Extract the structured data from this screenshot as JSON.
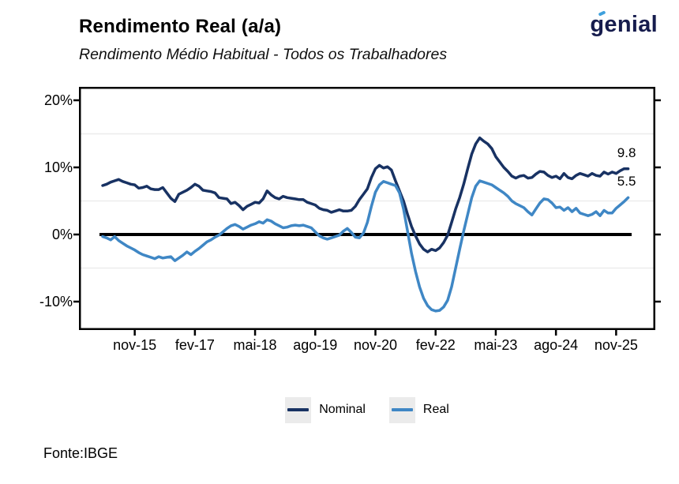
{
  "header": {
    "title": "Rendimento Real (a/a)",
    "subtitle": "Rendimento Médio Habitual - Todos os Trabalhadores",
    "logo_text": "genial"
  },
  "footer": {
    "source": "Fonte:IBGE"
  },
  "colors": {
    "nominal_line": "#183263",
    "real_line": "#3f87c5",
    "gridline": "#ececec",
    "axis": "#000000",
    "legend_key_bg": "#ebebeb",
    "logo_navy": "#161c4d",
    "logo_accent_blue": "#3fa0dc",
    "background": "#ffffff"
  },
  "chart_data": {
    "type": "line",
    "title": "Rendimento Real (a/a)",
    "subtitle": "Rendimento Médio Habitual - Todos os Trabalhadores",
    "source": "Fonte:IBGE",
    "grid": "minor-horizontal-only",
    "legend_position": "bottom-center",
    "y_axis": {
      "tick_labels": [
        "20%",
        "10%",
        "0%",
        "-10%"
      ],
      "tick_values": [
        20,
        10,
        0,
        -10
      ],
      "minor_gridlines": [
        15,
        5,
        -5
      ],
      "ylim": [
        -14,
        22
      ],
      "unit": "%"
    },
    "x_axis": {
      "tick_labels": [
        "nov-15",
        "fev-17",
        "mai-18",
        "ago-19",
        "nov-20",
        "fev-22",
        "mai-23",
        "ago-24",
        "nov-25"
      ],
      "tick_months": [
        8,
        23,
        38,
        53,
        68,
        83,
        98,
        113,
        128
      ],
      "months_total": 131
    },
    "zero_line": {
      "show": true,
      "color": "#000000",
      "width": 4
    },
    "end_labels": [
      {
        "series": "Nominal",
        "text": "9.8"
      },
      {
        "series": "Real",
        "text": "5.5"
      }
    ],
    "legend": [
      {
        "label": "Nominal",
        "color": "#183263"
      },
      {
        "label": "Real",
        "color": "#3f87c5"
      }
    ],
    "series": [
      {
        "name": "Nominal",
        "color": "#183263",
        "values": [
          7.3,
          7.5,
          7.8,
          8.0,
          8.2,
          7.9,
          7.7,
          7.5,
          7.4,
          6.9,
          7.0,
          7.2,
          6.8,
          6.7,
          6.7,
          7.0,
          6.2,
          5.4,
          4.9,
          6.0,
          6.3,
          6.6,
          7.0,
          7.5,
          7.2,
          6.6,
          6.5,
          6.4,
          6.2,
          5.5,
          5.4,
          5.3,
          4.6,
          4.8,
          4.3,
          3.7,
          4.2,
          4.5,
          4.8,
          4.7,
          5.3,
          6.5,
          5.9,
          5.5,
          5.3,
          5.7,
          5.5,
          5.4,
          5.3,
          5.2,
          5.2,
          4.8,
          4.6,
          4.4,
          3.9,
          3.7,
          3.6,
          3.3,
          3.5,
          3.7,
          3.5,
          3.5,
          3.6,
          4.2,
          5.2,
          6.0,
          6.8,
          8.5,
          9.8,
          10.3,
          9.9,
          10.1,
          9.6,
          8.0,
          6.5,
          5.0,
          3.0,
          1.2,
          -0.2,
          -1.4,
          -2.2,
          -2.6,
          -2.2,
          -2.4,
          -2.0,
          -1.2,
          -0.1,
          1.8,
          3.8,
          5.5,
          7.5,
          9.8,
          12.0,
          13.5,
          14.4,
          13.9,
          13.5,
          12.8,
          11.6,
          10.8,
          10.0,
          9.4,
          8.7,
          8.4,
          8.7,
          8.8,
          8.4,
          8.5,
          9.0,
          9.4,
          9.3,
          8.8,
          8.5,
          8.7,
          8.3,
          9.1,
          8.5,
          8.3,
          8.8,
          9.1,
          8.9,
          8.7,
          9.1,
          8.8,
          8.7,
          9.3,
          9.0,
          9.3,
          9.1,
          9.5,
          9.8,
          9.8
        ]
      },
      {
        "name": "Real",
        "color": "#3f87c5",
        "values": [
          -0.3,
          -0.5,
          -0.8,
          -0.3,
          -0.9,
          -1.3,
          -1.7,
          -2.0,
          -2.3,
          -2.7,
          -3.0,
          -3.2,
          -3.4,
          -3.6,
          -3.3,
          -3.5,
          -3.4,
          -3.3,
          -3.9,
          -3.5,
          -3.1,
          -2.6,
          -3.0,
          -2.5,
          -2.1,
          -1.6,
          -1.1,
          -0.8,
          -0.4,
          -0.1,
          0.4,
          0.9,
          1.3,
          1.5,
          1.2,
          0.8,
          1.1,
          1.4,
          1.6,
          1.9,
          1.7,
          2.2,
          2.0,
          1.6,
          1.3,
          1.0,
          1.1,
          1.3,
          1.4,
          1.3,
          1.4,
          1.2,
          1.0,
          0.4,
          -0.2,
          -0.5,
          -0.7,
          -0.5,
          -0.3,
          -0.1,
          0.5,
          0.9,
          0.3,
          -0.4,
          -0.5,
          0.2,
          1.8,
          4.2,
          6.3,
          7.4,
          7.9,
          7.7,
          7.5,
          7.3,
          6.2,
          3.8,
          0.5,
          -2.8,
          -5.5,
          -7.8,
          -9.5,
          -10.6,
          -11.2,
          -11.4,
          -11.3,
          -10.8,
          -9.8,
          -7.8,
          -5.0,
          -2.2,
          0.5,
          3.0,
          5.5,
          7.2,
          8.0,
          7.8,
          7.6,
          7.4,
          7.0,
          6.6,
          6.2,
          5.7,
          5.0,
          4.6,
          4.3,
          4.0,
          3.4,
          2.9,
          3.8,
          4.7,
          5.3,
          5.2,
          4.7,
          4.0,
          4.1,
          3.6,
          4.0,
          3.4,
          3.9,
          3.2,
          3.0,
          2.8,
          3.0,
          3.4,
          2.8,
          3.6,
          3.2,
          3.2,
          3.9,
          4.4,
          4.9,
          5.5
        ]
      }
    ]
  }
}
